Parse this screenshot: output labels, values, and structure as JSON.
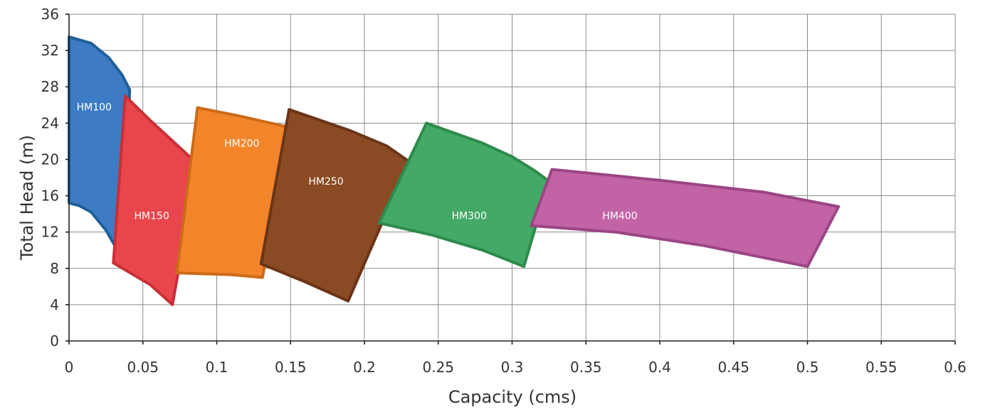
{
  "chart_data": {
    "type": "area",
    "xlabel": "Capacity (cms)",
    "ylabel": "Total Head (m)",
    "xlim": [
      0,
      0.6
    ],
    "ylim": [
      0,
      36
    ],
    "x_ticks": [
      "0",
      "0.05",
      "0.1",
      "0.15",
      "0.2",
      "0.25",
      "0.3",
      "0.35",
      "0.4",
      "0.45",
      "0.5",
      "0.55",
      "0.6"
    ],
    "y_ticks": [
      "0",
      "4",
      "8",
      "12",
      "16",
      "20",
      "24",
      "28",
      "32",
      "36"
    ],
    "grid": true,
    "series": [
      {
        "name": "HM100",
        "color": "#3d7cc4",
        "edge": "#1f5f9a",
        "label_at": [
          0.017,
          25.8
        ],
        "outline": [
          [
            0,
            33.5
          ],
          [
            0.015,
            32.8
          ],
          [
            0.027,
            31.2
          ],
          [
            0.036,
            29.3
          ],
          [
            0.041,
            27.7
          ],
          [
            0.0405,
            24
          ],
          [
            0.038,
            20
          ],
          [
            0.035,
            16
          ],
          [
            0.032,
            12.5
          ],
          [
            0.031,
            10.5
          ],
          [
            0.025,
            12.2
          ],
          [
            0.015,
            14.2
          ],
          [
            0.007,
            14.9
          ],
          [
            0,
            15.2
          ]
        ]
      },
      {
        "name": "HM150",
        "color": "#e9454c",
        "edge": "#c82f37",
        "label_at": [
          0.056,
          13.8
        ],
        "outline": [
          [
            0.038,
            27
          ],
          [
            0.055,
            24.3
          ],
          [
            0.085,
            19.8
          ],
          [
            0.082,
            15
          ],
          [
            0.07,
            4
          ],
          [
            0.055,
            6.2
          ],
          [
            0.03,
            8.6
          ]
        ]
      },
      {
        "name": "HM200",
        "color": "#f2852a",
        "edge": "#cd6a18",
        "label_at": [
          0.117,
          21.8
        ],
        "outline": [
          [
            0.087,
            25.7
          ],
          [
            0.115,
            24.8
          ],
          [
            0.15,
            23.5
          ],
          [
            0.14,
            15
          ],
          [
            0.131,
            7
          ],
          [
            0.11,
            7.3
          ],
          [
            0.073,
            7.5
          ]
        ]
      },
      {
        "name": "HM250",
        "color": "#8a4a24",
        "edge": "#6b3418",
        "label_at": [
          0.174,
          17.6
        ],
        "outline": [
          [
            0.149,
            25.5
          ],
          [
            0.19,
            23.2
          ],
          [
            0.215,
            21.5
          ],
          [
            0.23,
            19.8
          ],
          [
            0.189,
            4.4
          ],
          [
            0.16,
            6.5
          ],
          [
            0.13,
            8.5
          ]
        ]
      },
      {
        "name": "HM300",
        "color": "#43a966",
        "edge": "#2e8a4c",
        "label_at": [
          0.271,
          13.8
        ],
        "outline": [
          [
            0.242,
            24
          ],
          [
            0.28,
            21.8
          ],
          [
            0.3,
            20.3
          ],
          [
            0.315,
            18.8
          ],
          [
            0.325,
            17.6
          ],
          [
            0.308,
            8.2
          ],
          [
            0.28,
            10
          ],
          [
            0.245,
            11.7
          ],
          [
            0.21,
            13
          ]
        ]
      },
      {
        "name": "HM400",
        "color": "#c263a6",
        "edge": "#9b4585",
        "label_at": [
          0.373,
          13.8
        ],
        "outline": [
          [
            0.327,
            18.9
          ],
          [
            0.4,
            17.7
          ],
          [
            0.47,
            16.4
          ],
          [
            0.521,
            14.8
          ],
          [
            0.5,
            8.2
          ],
          [
            0.43,
            10.5
          ],
          [
            0.37,
            12
          ],
          [
            0.313,
            12.7
          ]
        ]
      }
    ]
  }
}
